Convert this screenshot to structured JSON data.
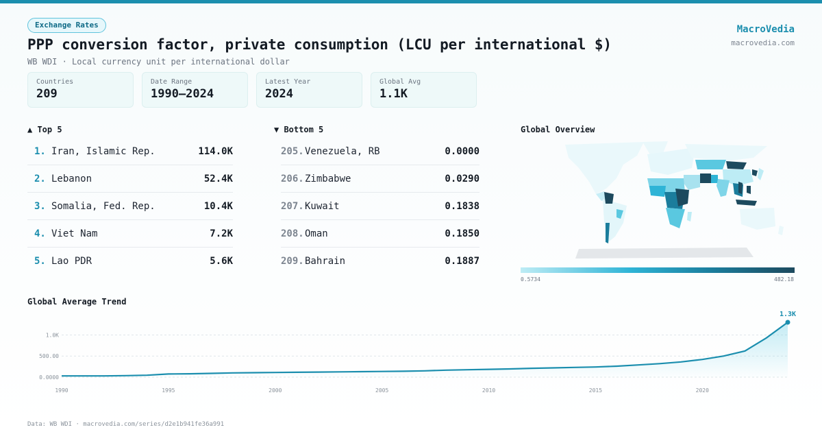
{
  "header": {
    "category": "Exchange Rates",
    "title": "PPP conversion factor, private consumption (LCU per international $)",
    "subtitle": "WB WDI · Local currency unit per international dollar"
  },
  "brand": {
    "name": "MacroVedia",
    "url": "macrovedia.com"
  },
  "stats": [
    {
      "label": "Countries",
      "value": "209"
    },
    {
      "label": "Date Range",
      "value": "1990–2024"
    },
    {
      "label": "Latest Year",
      "value": "2024"
    },
    {
      "label": "Global Avg",
      "value": "1.1K"
    }
  ],
  "top5": {
    "title": "▲ Top 5",
    "items": [
      {
        "rank": "1.",
        "name": "Iran, Islamic Rep.",
        "value": "114.0K"
      },
      {
        "rank": "2.",
        "name": "Lebanon",
        "value": "52.4K"
      },
      {
        "rank": "3.",
        "name": "Somalia, Fed. Rep.",
        "value": "10.4K"
      },
      {
        "rank": "4.",
        "name": "Viet Nam",
        "value": "7.2K"
      },
      {
        "rank": "5.",
        "name": "Lao PDR",
        "value": "5.6K"
      }
    ]
  },
  "bottom5": {
    "title": "▼ Bottom 5",
    "items": [
      {
        "rank": "205.",
        "name": "Venezuela, RB",
        "value": "0.0000"
      },
      {
        "rank": "206.",
        "name": "Zimbabwe",
        "value": "0.0290"
      },
      {
        "rank": "207.",
        "name": "Kuwait",
        "value": "0.1838"
      },
      {
        "rank": "208.",
        "name": "Oman",
        "value": "0.1850"
      },
      {
        "rank": "209.",
        "name": "Bahrain",
        "value": "0.1887"
      }
    ]
  },
  "map": {
    "title": "Global Overview",
    "legend_min": "0.5734",
    "legend_max": "482.18"
  },
  "trend": {
    "title": "Global Average Trend"
  },
  "footer": "Data: WB WDI · macrovedia.com/series/d2e1b941fe36a991",
  "colors": {
    "accent": "#1b8eae",
    "line": "#1b8eae",
    "dark": "#1d4a5e"
  },
  "chart_data": {
    "type": "area",
    "title": "Global Average Trend",
    "xlabel": "",
    "ylabel": "",
    "x": [
      1990,
      1991,
      1992,
      1993,
      1994,
      1995,
      1996,
      1997,
      1998,
      1999,
      2000,
      2001,
      2002,
      2003,
      2004,
      2005,
      2006,
      2007,
      2008,
      2009,
      2010,
      2011,
      2012,
      2013,
      2014,
      2015,
      2016,
      2017,
      2018,
      2019,
      2020,
      2021,
      2022,
      2023,
      2024
    ],
    "values": [
      30,
      30,
      30,
      35,
      45,
      75,
      80,
      90,
      100,
      105,
      110,
      115,
      120,
      125,
      130,
      135,
      140,
      150,
      165,
      175,
      185,
      195,
      210,
      220,
      230,
      240,
      260,
      290,
      320,
      360,
      420,
      500,
      620,
      930,
      1300
    ],
    "xticks": [
      1990,
      1995,
      2000,
      2005,
      2010,
      2015,
      2020
    ],
    "yticks": [
      0,
      500,
      1000
    ],
    "ytick_labels": [
      "0.0000",
      "500.00",
      "1.0K"
    ],
    "ylim": [
      0,
      1300
    ],
    "end_label": "1.3K",
    "grid": true
  }
}
